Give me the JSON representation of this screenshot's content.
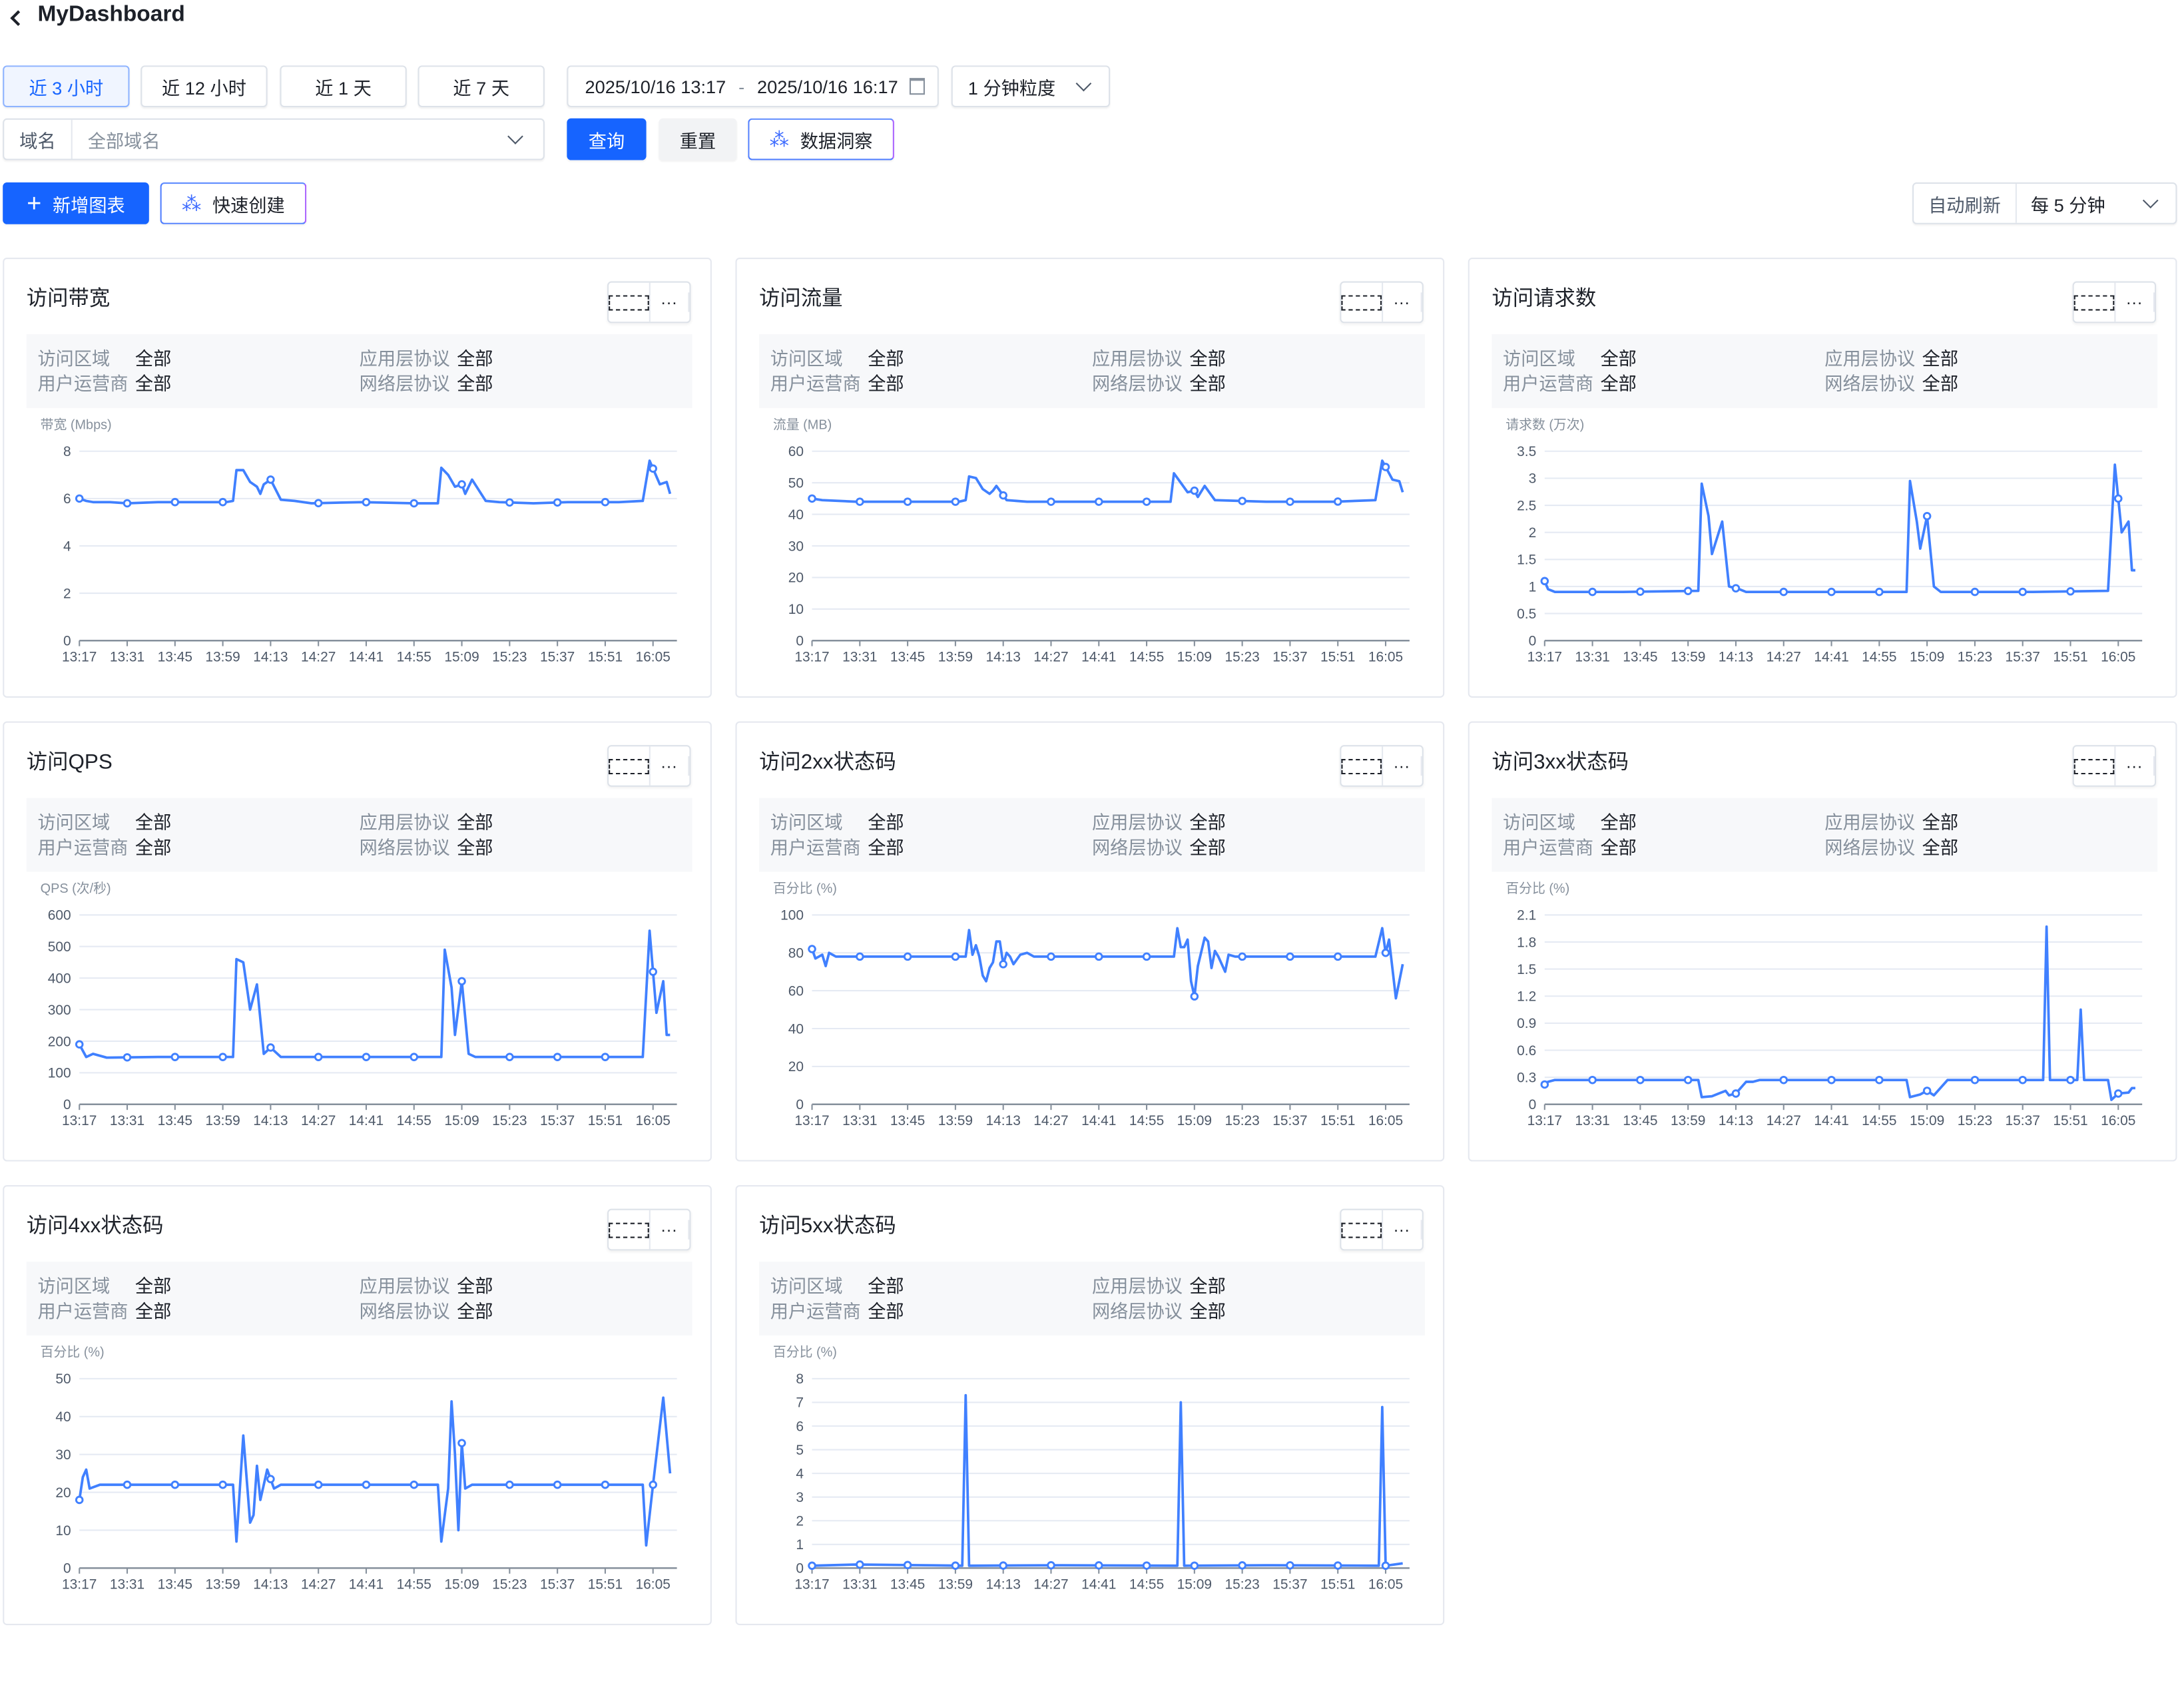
{
  "header": {
    "title": "MyDashboard"
  },
  "toolbar": {
    "ranges": [
      "近 3 小时",
      "近 12 小时",
      "近 1 天",
      "近 7 天"
    ],
    "active_range": 0,
    "date_start": "2025/10/16 13:17",
    "date_sep": "-",
    "date_end": "2025/10/16 16:17",
    "granularity": "1 分钟粒度",
    "domain_label": "域名",
    "domain_value": "全部域名",
    "query": "查询",
    "reset": "重置",
    "insight": "数据洞察",
    "add_chart": "新增图表",
    "quick_create": "快速创建",
    "auto_refresh_label": "自动刷新",
    "auto_refresh_value": "每 5 分钟"
  },
  "filter_labels": [
    "访问区域",
    "用户运营商",
    "应用层协议",
    "网络层协议"
  ],
  "filter_values": [
    "全部",
    "全部",
    "全部",
    "全部"
  ],
  "colors": {
    "line": "#4080ff",
    "primary": "#1664ff",
    "grid": "#e5eaf3"
  },
  "chart_data": [
    {
      "title": "访问带宽",
      "type": "line",
      "ylabel": "带宽 (Mbps)",
      "yticks": [
        "0",
        "2",
        "4",
        "6",
        "8"
      ],
      "ylim": [
        0,
        8
      ],
      "xticks": [
        "13:17",
        "13:31",
        "13:45",
        "13:59",
        "14:13",
        "14:27",
        "14:41",
        "14:55",
        "15:09",
        "15:23",
        "15:37",
        "15:51",
        "16:05"
      ],
      "xlim": [
        "13:17",
        "16:12"
      ],
      "points": [
        [
          "13:17",
          6.0
        ],
        [
          "13:19",
          5.9
        ],
        [
          "13:21",
          5.85
        ],
        [
          "13:26",
          5.85
        ],
        [
          "13:31",
          5.8
        ],
        [
          "13:40",
          5.85
        ],
        [
          "13:50",
          5.85
        ],
        [
          "14:00",
          5.85
        ],
        [
          "14:02",
          5.9
        ],
        [
          "14:03",
          7.2
        ],
        [
          "14:05",
          7.2
        ],
        [
          "14:07",
          6.7
        ],
        [
          "14:09",
          6.5
        ],
        [
          "14:10",
          6.2
        ],
        [
          "14:11",
          6.6
        ],
        [
          "14:13",
          6.8
        ],
        [
          "14:16",
          5.95
        ],
        [
          "14:20",
          5.9
        ],
        [
          "14:25",
          5.8
        ],
        [
          "14:40",
          5.85
        ],
        [
          "14:55",
          5.8
        ],
        [
          "15:02",
          5.8
        ],
        [
          "15:03",
          7.3
        ],
        [
          "15:05",
          7.0
        ],
        [
          "15:07",
          6.5
        ],
        [
          "15:09",
          6.6
        ],
        [
          "15:10",
          6.2
        ],
        [
          "15:12",
          6.8
        ],
        [
          "15:16",
          5.9
        ],
        [
          "15:20",
          5.85
        ],
        [
          "15:30",
          5.8
        ],
        [
          "15:40",
          5.85
        ],
        [
          "15:55",
          5.85
        ],
        [
          "16:02",
          5.9
        ],
        [
          "16:04",
          7.6
        ],
        [
          "16:07",
          6.6
        ],
        [
          "16:09",
          6.7
        ],
        [
          "16:10",
          6.2
        ]
      ]
    },
    {
      "title": "访问流量",
      "type": "line",
      "ylabel": "流量 (MB)",
      "yticks": [
        "0",
        "10",
        "20",
        "30",
        "40",
        "50",
        "60"
      ],
      "ylim": [
        0,
        60
      ],
      "xticks": [
        "13:17",
        "13:31",
        "13:45",
        "13:59",
        "14:13",
        "14:27",
        "14:41",
        "14:55",
        "15:09",
        "15:23",
        "15:37",
        "15:51",
        "16:05"
      ],
      "xlim": [
        "13:17",
        "16:12"
      ],
      "points": [
        [
          "13:17",
          45
        ],
        [
          "13:20",
          44.5
        ],
        [
          "13:30",
          44
        ],
        [
          "13:45",
          44
        ],
        [
          "14:00",
          44
        ],
        [
          "14:02",
          44.5
        ],
        [
          "14:03",
          52
        ],
        [
          "14:05",
          51.5
        ],
        [
          "14:07",
          48
        ],
        [
          "14:09",
          46.5
        ],
        [
          "14:10",
          47.5
        ],
        [
          "14:11",
          49
        ],
        [
          "14:14",
          44.5
        ],
        [
          "14:20",
          44
        ],
        [
          "14:40",
          44
        ],
        [
          "15:02",
          44
        ],
        [
          "15:03",
          53
        ],
        [
          "15:05",
          50
        ],
        [
          "15:07",
          47
        ],
        [
          "15:09",
          47.5
        ],
        [
          "15:10",
          45.5
        ],
        [
          "15:12",
          49
        ],
        [
          "15:15",
          44.5
        ],
        [
          "15:30",
          44
        ],
        [
          "15:50",
          44
        ],
        [
          "16:02",
          44.5
        ],
        [
          "16:04",
          57
        ],
        [
          "16:07",
          51
        ],
        [
          "16:09",
          50.5
        ],
        [
          "16:10",
          47
        ]
      ]
    },
    {
      "title": "访问请求数",
      "type": "line",
      "ylabel": "请求数 (万次)",
      "yticks": [
        "0",
        "0.5",
        "1",
        "1.5",
        "2",
        "2.5",
        "3",
        "3.5"
      ],
      "ylim": [
        0,
        3.5
      ],
      "xticks": [
        "13:17",
        "13:31",
        "13:45",
        "13:59",
        "14:13",
        "14:27",
        "14:41",
        "14:55",
        "15:09",
        "15:23",
        "15:37",
        "15:51",
        "16:05"
      ],
      "xlim": [
        "13:17",
        "16:12"
      ],
      "points": [
        [
          "13:17",
          1.1
        ],
        [
          "13:18",
          0.95
        ],
        [
          "13:20",
          0.9
        ],
        [
          "13:40",
          0.9
        ],
        [
          "14:02",
          0.92
        ],
        [
          "14:03",
          2.9
        ],
        [
          "14:05",
          2.3
        ],
        [
          "14:06",
          1.6
        ],
        [
          "14:08",
          2.0
        ],
        [
          "14:09",
          2.2
        ],
        [
          "14:11",
          1.0
        ],
        [
          "14:14",
          0.95
        ],
        [
          "14:16",
          0.9
        ],
        [
          "14:40",
          0.9
        ],
        [
          "15:03",
          0.9
        ],
        [
          "15:04",
          2.95
        ],
        [
          "15:06",
          2.2
        ],
        [
          "15:07",
          1.7
        ],
        [
          "15:09",
          2.3
        ],
        [
          "15:11",
          1.0
        ],
        [
          "15:13",
          0.9
        ],
        [
          "15:40",
          0.9
        ],
        [
          "16:02",
          0.92
        ],
        [
          "16:04",
          3.25
        ],
        [
          "16:06",
          2.0
        ],
        [
          "16:08",
          2.2
        ],
        [
          "16:09",
          1.3
        ],
        [
          "16:10",
          1.3
        ]
      ]
    },
    {
      "title": "访问QPS",
      "type": "line",
      "ylabel": "QPS (次/秒)",
      "yticks": [
        "0",
        "100",
        "200",
        "300",
        "400",
        "500",
        "600"
      ],
      "ylim": [
        0,
        600
      ],
      "xticks": [
        "13:17",
        "13:31",
        "13:45",
        "13:59",
        "14:13",
        "14:27",
        "14:41",
        "14:55",
        "15:09",
        "15:23",
        "15:37",
        "15:51",
        "16:05"
      ],
      "xlim": [
        "13:17",
        "16:12"
      ],
      "points": [
        [
          "13:17",
          190
        ],
        [
          "13:19",
          150
        ],
        [
          "13:21",
          160
        ],
        [
          "13:25",
          148
        ],
        [
          "13:40",
          150
        ],
        [
          "14:02",
          150
        ],
        [
          "14:03",
          460
        ],
        [
          "14:05",
          450
        ],
        [
          "14:07",
          300
        ],
        [
          "14:09",
          380
        ],
        [
          "14:11",
          160
        ],
        [
          "14:13",
          180
        ],
        [
          "14:16",
          150
        ],
        [
          "14:40",
          150
        ],
        [
          "15:03",
          150
        ],
        [
          "15:04",
          490
        ],
        [
          "15:06",
          370
        ],
        [
          "15:07",
          220
        ],
        [
          "15:09",
          390
        ],
        [
          "15:11",
          160
        ],
        [
          "15:13",
          150
        ],
        [
          "15:40",
          150
        ],
        [
          "16:02",
          150
        ],
        [
          "16:04",
          550
        ],
        [
          "16:06",
          290
        ],
        [
          "16:08",
          390
        ],
        [
          "16:09",
          220
        ],
        [
          "16:10",
          220
        ]
      ]
    },
    {
      "title": "访问2xx状态码",
      "type": "line",
      "ylabel": "百分比 (%)",
      "yticks": [
        "0",
        "20",
        "40",
        "60",
        "80",
        "100"
      ],
      "ylim": [
        0,
        100
      ],
      "xticks": [
        "13:17",
        "13:31",
        "13:45",
        "13:59",
        "14:13",
        "14:27",
        "14:41",
        "14:55",
        "15:09",
        "15:23",
        "15:37",
        "15:51",
        "16:05"
      ],
      "xlim": [
        "13:17",
        "16:12"
      ],
      "points": [
        [
          "13:17",
          82
        ],
        [
          "13:18",
          77
        ],
        [
          "13:20",
          79
        ],
        [
          "13:21",
          73
        ],
        [
          "13:22",
          80
        ],
        [
          "13:24",
          78
        ],
        [
          "13:45",
          78
        ],
        [
          "14:02",
          78
        ],
        [
          "14:03",
          92
        ],
        [
          "14:04",
          79
        ],
        [
          "14:05",
          84
        ],
        [
          "14:06",
          78
        ],
        [
          "14:07",
          68
        ],
        [
          "14:08",
          65
        ],
        [
          "14:09",
          72
        ],
        [
          "14:10",
          75
        ],
        [
          "14:11",
          86
        ],
        [
          "14:12",
          86
        ],
        [
          "14:13",
          74
        ],
        [
          "14:14",
          80
        ],
        [
          "14:15",
          78
        ],
        [
          "14:16",
          74
        ],
        [
          "14:18",
          79
        ],
        [
          "14:20",
          80
        ],
        [
          "14:22",
          78
        ],
        [
          "14:50",
          78
        ],
        [
          "15:03",
          78
        ],
        [
          "15:04",
          93
        ],
        [
          "15:05",
          83
        ],
        [
          "15:06",
          83
        ],
        [
          "15:07",
          87
        ],
        [
          "15:08",
          65
        ],
        [
          "15:09",
          57
        ],
        [
          "15:10",
          73
        ],
        [
          "15:12",
          88
        ],
        [
          "15:13",
          86
        ],
        [
          "15:14",
          72
        ],
        [
          "15:15",
          81
        ],
        [
          "15:16",
          78
        ],
        [
          "15:18",
          70
        ],
        [
          "15:19",
          79
        ],
        [
          "15:21",
          78
        ],
        [
          "15:50",
          78
        ],
        [
          "16:02",
          78
        ],
        [
          "16:04",
          93
        ],
        [
          "16:05",
          80
        ],
        [
          "16:06",
          87
        ],
        [
          "16:08",
          56
        ],
        [
          "16:10",
          74
        ]
      ]
    },
    {
      "title": "访问3xx状态码",
      "type": "line",
      "ylabel": "百分比 (%)",
      "yticks": [
        "0",
        "0.3",
        "0.6",
        "0.9",
        "1.2",
        "1.5",
        "1.8",
        "2.1"
      ],
      "ylim": [
        0,
        2.1
      ],
      "xticks": [
        "13:17",
        "13:31",
        "13:45",
        "13:59",
        "14:13",
        "14:27",
        "14:41",
        "14:55",
        "15:09",
        "15:23",
        "15:37",
        "15:51",
        "16:05"
      ],
      "xlim": [
        "13:17",
        "16:12"
      ],
      "points": [
        [
          "13:17",
          0.22
        ],
        [
          "13:18",
          0.25
        ],
        [
          "13:20",
          0.27
        ],
        [
          "13:40",
          0.27
        ],
        [
          "14:02",
          0.27
        ],
        [
          "14:03",
          0.08
        ],
        [
          "14:06",
          0.09
        ],
        [
          "14:08",
          0.12
        ],
        [
          "14:10",
          0.15
        ],
        [
          "14:11",
          0.1
        ],
        [
          "14:13",
          0.12
        ],
        [
          "14:16",
          0.25
        ],
        [
          "14:18",
          0.25
        ],
        [
          "14:20",
          0.27
        ],
        [
          "14:50",
          0.27
        ],
        [
          "15:03",
          0.27
        ],
        [
          "15:04",
          0.08
        ],
        [
          "15:07",
          0.11
        ],
        [
          "15:09",
          0.15
        ],
        [
          "15:11",
          0.1
        ],
        [
          "15:15",
          0.27
        ],
        [
          "15:43",
          0.27
        ],
        [
          "15:44",
          1.97
        ],
        [
          "15:45",
          0.27
        ],
        [
          "15:53",
          0.27
        ],
        [
          "15:54",
          1.05
        ],
        [
          "15:55",
          0.27
        ],
        [
          "16:02",
          0.27
        ],
        [
          "16:03",
          0.05
        ],
        [
          "16:05",
          0.12
        ],
        [
          "16:08",
          0.13
        ],
        [
          "16:09",
          0.18
        ],
        [
          "16:10",
          0.18
        ]
      ]
    },
    {
      "title": "访问4xx状态码",
      "type": "line",
      "ylabel": "百分比 (%)",
      "yticks": [
        "0",
        "10",
        "20",
        "30",
        "40",
        "50"
      ],
      "ylim": [
        0,
        50
      ],
      "xticks": [
        "13:17",
        "13:31",
        "13:45",
        "13:59",
        "14:13",
        "14:27",
        "14:41",
        "14:55",
        "15:09",
        "15:23",
        "15:37",
        "15:51",
        "16:05"
      ],
      "xlim": [
        "13:17",
        "16:12"
      ],
      "points": [
        [
          "13:17",
          18
        ],
        [
          "13:18",
          24
        ],
        [
          "13:19",
          26
        ],
        [
          "13:20",
          21
        ],
        [
          "13:23",
          22
        ],
        [
          "13:50",
          22
        ],
        [
          "14:02",
          22
        ],
        [
          "14:03",
          7
        ],
        [
          "14:05",
          35
        ],
        [
          "14:07",
          12
        ],
        [
          "14:08",
          14
        ],
        [
          "14:09",
          27
        ],
        [
          "14:10",
          18
        ],
        [
          "14:12",
          26
        ],
        [
          "14:14",
          21
        ],
        [
          "14:16",
          22
        ],
        [
          "14:50",
          22
        ],
        [
          "15:02",
          22
        ],
        [
          "15:03",
          7
        ],
        [
          "15:05",
          21
        ],
        [
          "15:06",
          44
        ],
        [
          "15:07",
          30
        ],
        [
          "15:08",
          10
        ],
        [
          "15:09",
          33
        ],
        [
          "15:10",
          21
        ],
        [
          "15:12",
          22
        ],
        [
          "15:50",
          22
        ],
        [
          "16:02",
          22
        ],
        [
          "16:03",
          6
        ],
        [
          "16:05",
          22
        ],
        [
          "16:08",
          45
        ],
        [
          "16:10",
          25
        ]
      ]
    },
    {
      "title": "访问5xx状态码",
      "type": "line",
      "ylabel": "百分比 (%)",
      "yticks": [
        "0",
        "1",
        "2",
        "3",
        "4",
        "5",
        "6",
        "7",
        "8"
      ],
      "ylim": [
        0,
        8
      ],
      "xticks": [
        "13:17",
        "13:31",
        "13:45",
        "13:59",
        "14:13",
        "14:27",
        "14:41",
        "14:55",
        "15:09",
        "15:23",
        "15:37",
        "15:51",
        "16:05"
      ],
      "xlim": [
        "13:17",
        "16:12"
      ],
      "points": [
        [
          "13:17",
          0.1
        ],
        [
          "13:30",
          0.15
        ],
        [
          "13:50",
          0.12
        ],
        [
          "14:01",
          0.1
        ],
        [
          "14:02",
          7.3
        ],
        [
          "14:03",
          0.1
        ],
        [
          "14:30",
          0.12
        ],
        [
          "15:04",
          0.1
        ],
        [
          "15:05",
          7.0
        ],
        [
          "15:06",
          0.1
        ],
        [
          "15:30",
          0.12
        ],
        [
          "16:03",
          0.1
        ],
        [
          "16:04",
          6.8
        ],
        [
          "16:05",
          0.1
        ],
        [
          "16:10",
          0.2
        ]
      ]
    }
  ]
}
